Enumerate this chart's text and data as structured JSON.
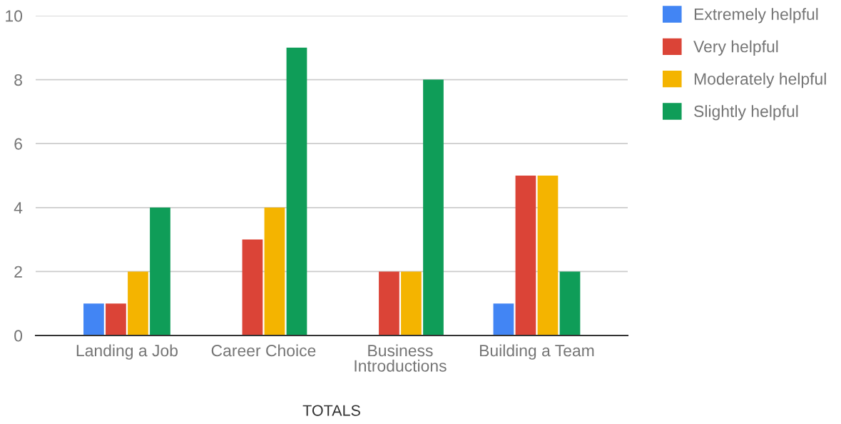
{
  "chart_data": {
    "type": "bar",
    "categories": [
      "Landing a Job",
      "Career Choice",
      "Business\nIntroductions",
      "Building a Team"
    ],
    "series": [
      {
        "name": "Extremely helpful",
        "color": "#4285f4",
        "values": [
          1,
          null,
          null,
          1
        ]
      },
      {
        "name": "Very helpful",
        "color": "#db4437",
        "values": [
          1,
          3,
          2,
          5
        ]
      },
      {
        "name": "Moderately helpful",
        "color": "#f4b400",
        "values": [
          2,
          4,
          2,
          5
        ]
      },
      {
        "name": "Slightly helpful",
        "color": "#0f9d58",
        "values": [
          4,
          9,
          8,
          2
        ]
      }
    ],
    "xlabel": "TOTALS",
    "ylim": [
      0,
      10
    ],
    "yticks": [
      0,
      2,
      4,
      6,
      8,
      10
    ],
    "grid": "y",
    "legend": "top right"
  }
}
